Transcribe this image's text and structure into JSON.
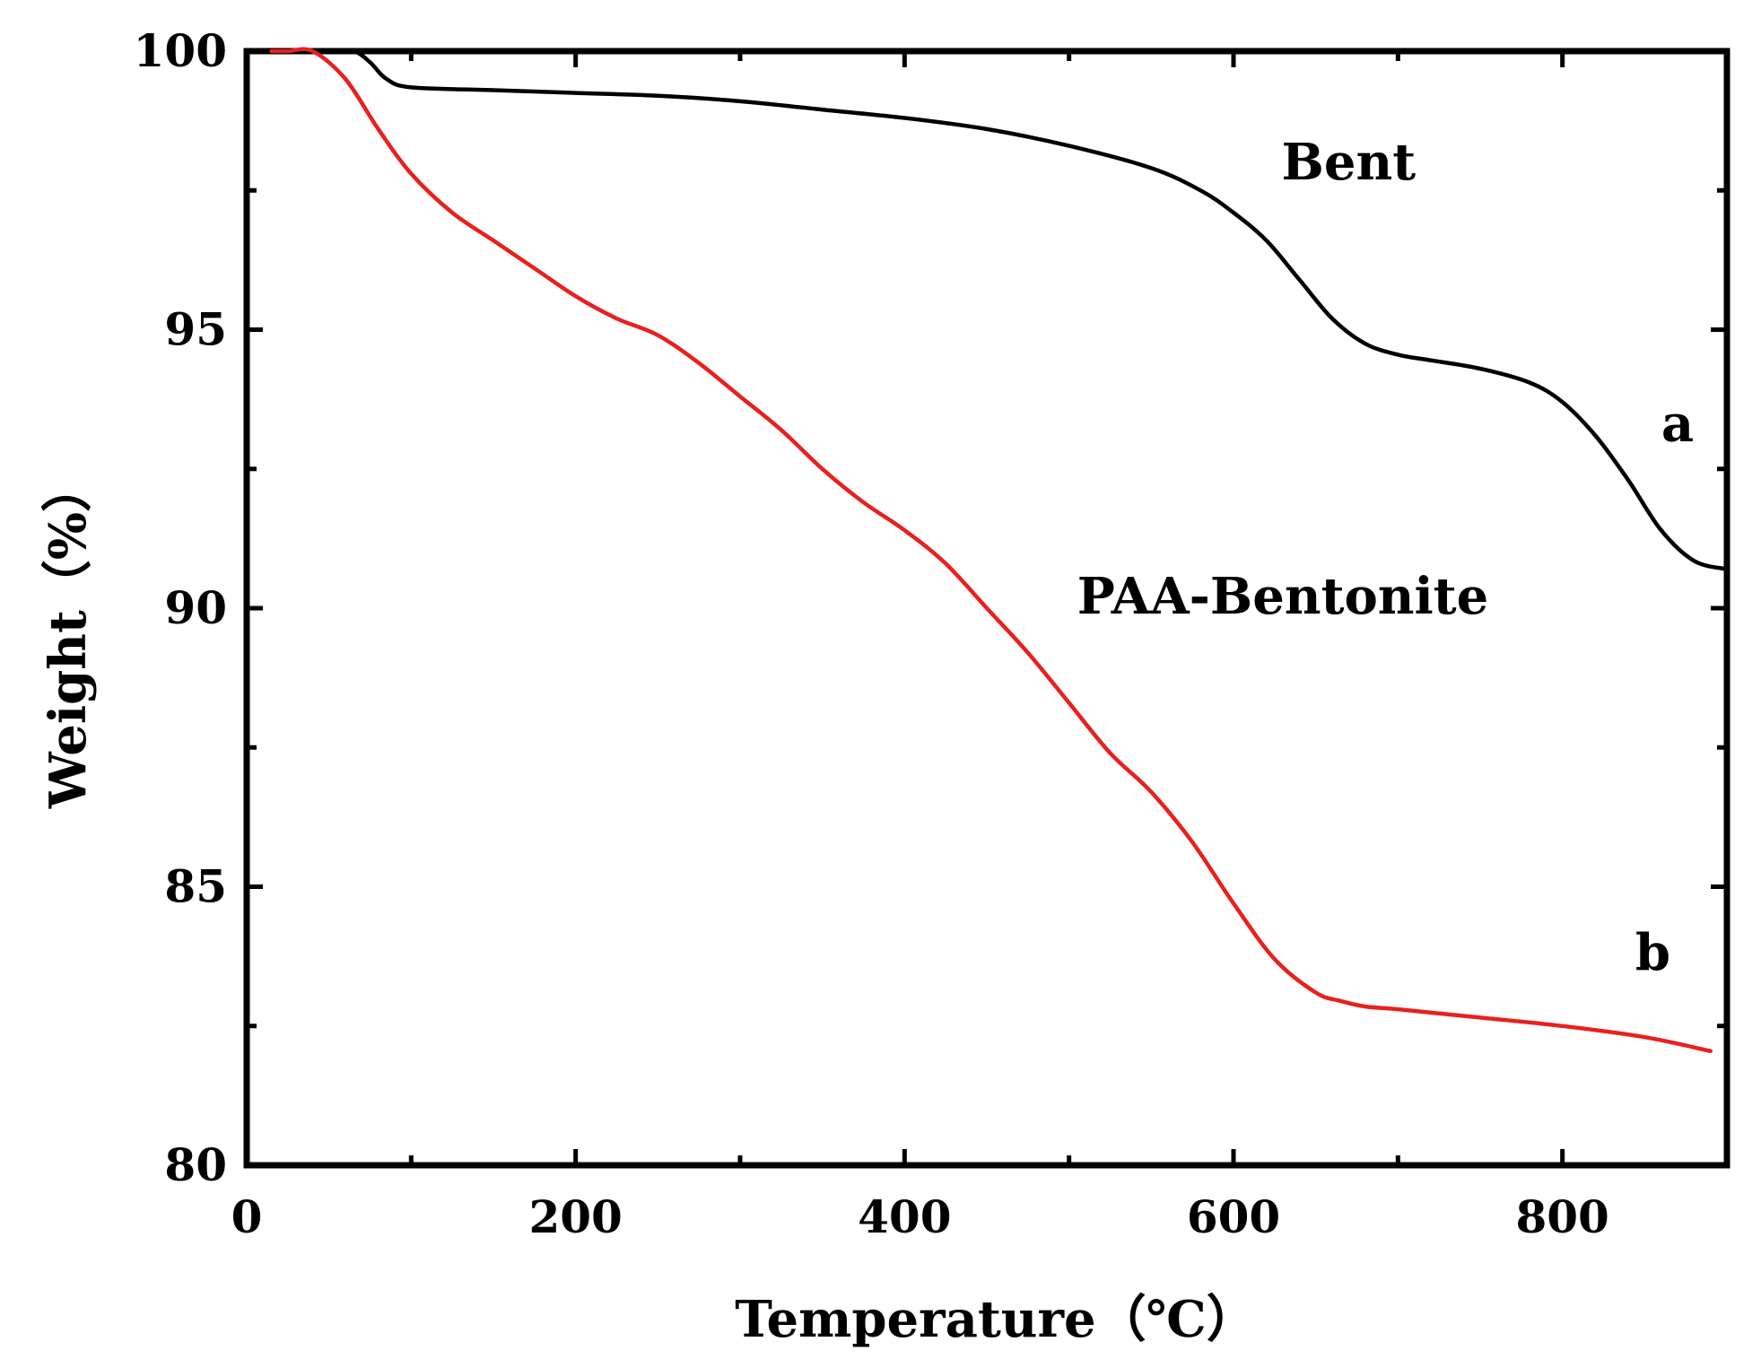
{
  "chart_data": {
    "type": "line",
    "title": "",
    "xlabel": "Temperature（℃）",
    "ylabel": "Weight（%）",
    "xlim": [
      0,
      900
    ],
    "ylim": [
      80,
      100
    ],
    "x_ticks": [
      0,
      200,
      400,
      600,
      800
    ],
    "y_ticks": [
      80,
      85,
      90,
      95,
      100
    ],
    "grid": false,
    "legend": "none",
    "annotations": [
      {
        "text": "Bent",
        "x": 670,
        "y": 97.7
      },
      {
        "text": "PAA-Bentonite",
        "x": 630,
        "y": 89.9
      },
      {
        "text": "a",
        "x": 870,
        "y": 93.0
      },
      {
        "text": "b",
        "x": 855,
        "y": 83.5
      }
    ],
    "series": [
      {
        "color": "#000000",
        "x": [
          0,
          25,
          50,
          65,
          75,
          85,
          100,
          150,
          200,
          250,
          300,
          350,
          400,
          450,
          500,
          550,
          580,
          600,
          620,
          640,
          660,
          680,
          700,
          720,
          750,
          780,
          800,
          820,
          840,
          860,
          880,
          900
        ],
        "y": [
          100,
          100,
          100,
          100,
          99.8,
          99.5,
          99.35,
          99.3,
          99.25,
          99.2,
          99.1,
          98.95,
          98.8,
          98.6,
          98.3,
          97.9,
          97.5,
          97.1,
          96.6,
          95.9,
          95.2,
          94.75,
          94.55,
          94.45,
          94.3,
          94.05,
          93.7,
          93.1,
          92.3,
          91.4,
          90.85,
          90.7
        ]
      },
      {
        "color": "#e8201e",
        "x": [
          15,
          25,
          40,
          60,
          80,
          100,
          125,
          150,
          175,
          200,
          225,
          250,
          275,
          300,
          325,
          350,
          375,
          400,
          425,
          450,
          475,
          500,
          525,
          550,
          575,
          600,
          625,
          650,
          665,
          680,
          700,
          750,
          800,
          850,
          890
        ],
        "y": [
          100,
          100,
          100,
          99.5,
          98.6,
          97.8,
          97.1,
          96.6,
          96.1,
          95.6,
          95.2,
          94.9,
          94.4,
          93.8,
          93.2,
          92.5,
          91.9,
          91.4,
          90.8,
          90.0,
          89.2,
          88.3,
          87.4,
          86.7,
          85.8,
          84.7,
          83.7,
          83.1,
          82.95,
          82.85,
          82.8,
          82.65,
          82.5,
          82.3,
          82.05
        ]
      }
    ]
  }
}
